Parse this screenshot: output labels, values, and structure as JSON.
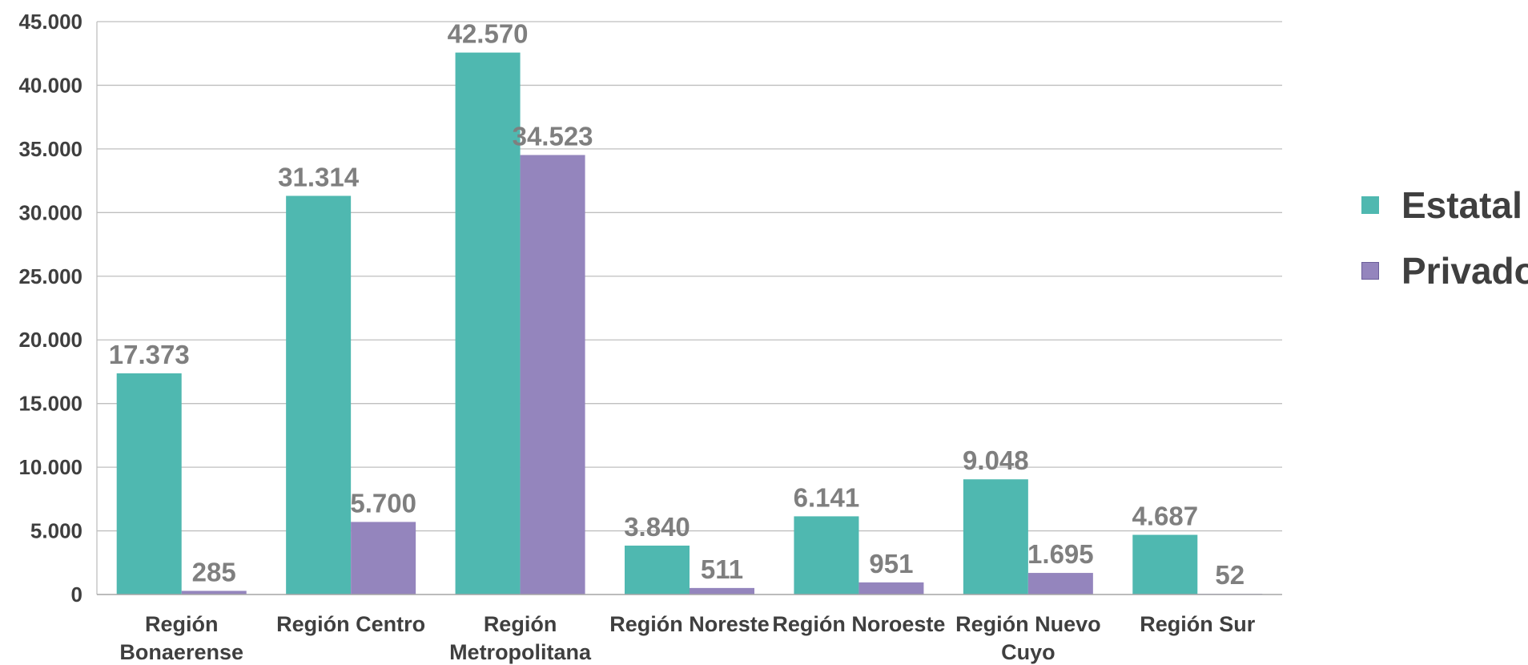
{
  "chart_data": {
    "type": "bar",
    "categories": [
      [
        "Región",
        "Bonaerense"
      ],
      [
        "Región Centro"
      ],
      [
        "Región",
        "Metropolitana"
      ],
      [
        "Región Noreste"
      ],
      [
        "Región Noroeste"
      ],
      [
        "Región Nuevo",
        "Cuyo"
      ],
      [
        "Región Sur"
      ]
    ],
    "series": [
      {
        "name": "Estatal",
        "color": "#4fb8b0",
        "values": [
          17373,
          31314,
          42570,
          3840,
          6141,
          9048,
          4687
        ],
        "labels": [
          "17.373",
          "31.314",
          "42.570",
          "3.840",
          "6.141",
          "9.048",
          "4.687"
        ]
      },
      {
        "name": "Privado",
        "color": "#9485bd",
        "values": [
          285,
          5700,
          34523,
          511,
          951,
          1695,
          52
        ],
        "labels": [
          "285",
          "5.700",
          "34.523",
          "511",
          "951",
          "1.695",
          "52"
        ]
      }
    ],
    "yticks": [
      {
        "value": 0,
        "label": "0"
      },
      {
        "value": 5000,
        "label": "5.000"
      },
      {
        "value": 10000,
        "label": "10.000"
      },
      {
        "value": 15000,
        "label": "15.000"
      },
      {
        "value": 20000,
        "label": "20.000"
      },
      {
        "value": 25000,
        "label": "25.000"
      },
      {
        "value": 30000,
        "label": "30.000"
      },
      {
        "value": 35000,
        "label": "35.000"
      },
      {
        "value": 40000,
        "label": "40.000"
      },
      {
        "value": 45000,
        "label": "45.000"
      }
    ],
    "ylim": [
      0,
      45000
    ],
    "title": "",
    "xlabel": "",
    "ylabel": "",
    "grid": true,
    "legend": "right"
  }
}
